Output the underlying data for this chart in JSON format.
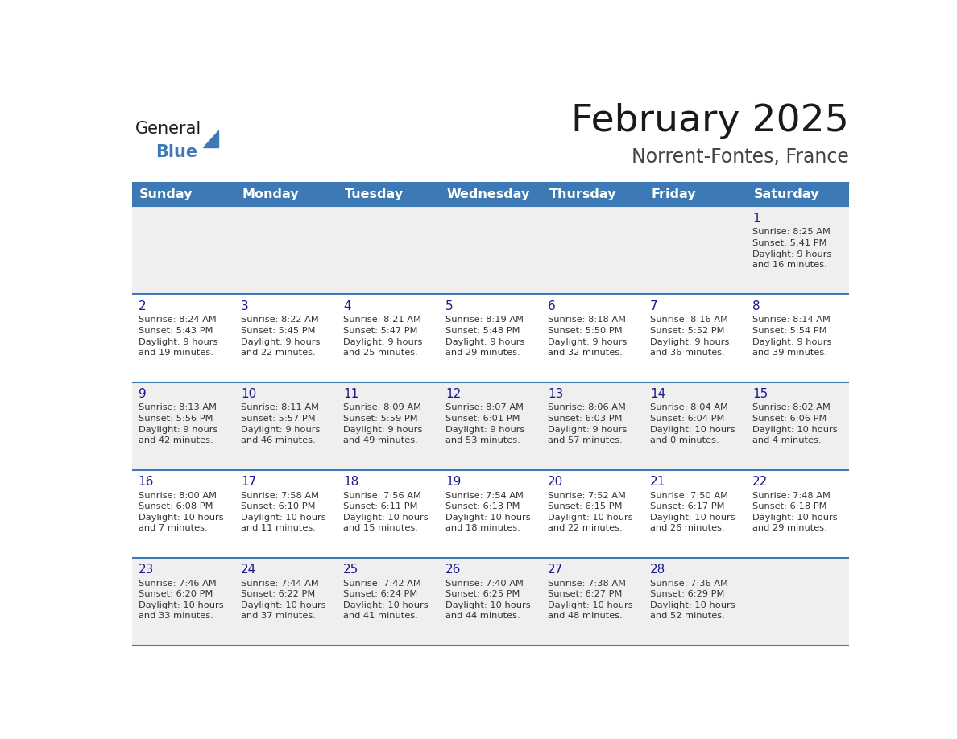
{
  "title": "February 2025",
  "subtitle": "Norrent-Fontes, France",
  "days_of_week": [
    "Sunday",
    "Monday",
    "Tuesday",
    "Wednesday",
    "Thursday",
    "Friday",
    "Saturday"
  ],
  "header_bg": "#3d7ab5",
  "header_text": "#ffffff",
  "cell_bg_odd": "#efefef",
  "cell_bg_even": "#ffffff",
  "day_number_color": "#1a1a8c",
  "info_text_color": "#333333",
  "line_color": "#3d7ab5",
  "title_color": "#1a1a1a",
  "subtitle_color": "#444444",
  "logo_general_color": "#1a1a1a",
  "logo_blue_color": "#3d7ab5",
  "weeks": [
    [
      {
        "day": null,
        "info": ""
      },
      {
        "day": null,
        "info": ""
      },
      {
        "day": null,
        "info": ""
      },
      {
        "day": null,
        "info": ""
      },
      {
        "day": null,
        "info": ""
      },
      {
        "day": null,
        "info": ""
      },
      {
        "day": 1,
        "info": "Sunrise: 8:25 AM\nSunset: 5:41 PM\nDaylight: 9 hours\nand 16 minutes."
      }
    ],
    [
      {
        "day": 2,
        "info": "Sunrise: 8:24 AM\nSunset: 5:43 PM\nDaylight: 9 hours\nand 19 minutes."
      },
      {
        "day": 3,
        "info": "Sunrise: 8:22 AM\nSunset: 5:45 PM\nDaylight: 9 hours\nand 22 minutes."
      },
      {
        "day": 4,
        "info": "Sunrise: 8:21 AM\nSunset: 5:47 PM\nDaylight: 9 hours\nand 25 minutes."
      },
      {
        "day": 5,
        "info": "Sunrise: 8:19 AM\nSunset: 5:48 PM\nDaylight: 9 hours\nand 29 minutes."
      },
      {
        "day": 6,
        "info": "Sunrise: 8:18 AM\nSunset: 5:50 PM\nDaylight: 9 hours\nand 32 minutes."
      },
      {
        "day": 7,
        "info": "Sunrise: 8:16 AM\nSunset: 5:52 PM\nDaylight: 9 hours\nand 36 minutes."
      },
      {
        "day": 8,
        "info": "Sunrise: 8:14 AM\nSunset: 5:54 PM\nDaylight: 9 hours\nand 39 minutes."
      }
    ],
    [
      {
        "day": 9,
        "info": "Sunrise: 8:13 AM\nSunset: 5:56 PM\nDaylight: 9 hours\nand 42 minutes."
      },
      {
        "day": 10,
        "info": "Sunrise: 8:11 AM\nSunset: 5:57 PM\nDaylight: 9 hours\nand 46 minutes."
      },
      {
        "day": 11,
        "info": "Sunrise: 8:09 AM\nSunset: 5:59 PM\nDaylight: 9 hours\nand 49 minutes."
      },
      {
        "day": 12,
        "info": "Sunrise: 8:07 AM\nSunset: 6:01 PM\nDaylight: 9 hours\nand 53 minutes."
      },
      {
        "day": 13,
        "info": "Sunrise: 8:06 AM\nSunset: 6:03 PM\nDaylight: 9 hours\nand 57 minutes."
      },
      {
        "day": 14,
        "info": "Sunrise: 8:04 AM\nSunset: 6:04 PM\nDaylight: 10 hours\nand 0 minutes."
      },
      {
        "day": 15,
        "info": "Sunrise: 8:02 AM\nSunset: 6:06 PM\nDaylight: 10 hours\nand 4 minutes."
      }
    ],
    [
      {
        "day": 16,
        "info": "Sunrise: 8:00 AM\nSunset: 6:08 PM\nDaylight: 10 hours\nand 7 minutes."
      },
      {
        "day": 17,
        "info": "Sunrise: 7:58 AM\nSunset: 6:10 PM\nDaylight: 10 hours\nand 11 minutes."
      },
      {
        "day": 18,
        "info": "Sunrise: 7:56 AM\nSunset: 6:11 PM\nDaylight: 10 hours\nand 15 minutes."
      },
      {
        "day": 19,
        "info": "Sunrise: 7:54 AM\nSunset: 6:13 PM\nDaylight: 10 hours\nand 18 minutes."
      },
      {
        "day": 20,
        "info": "Sunrise: 7:52 AM\nSunset: 6:15 PM\nDaylight: 10 hours\nand 22 minutes."
      },
      {
        "day": 21,
        "info": "Sunrise: 7:50 AM\nSunset: 6:17 PM\nDaylight: 10 hours\nand 26 minutes."
      },
      {
        "day": 22,
        "info": "Sunrise: 7:48 AM\nSunset: 6:18 PM\nDaylight: 10 hours\nand 29 minutes."
      }
    ],
    [
      {
        "day": 23,
        "info": "Sunrise: 7:46 AM\nSunset: 6:20 PM\nDaylight: 10 hours\nand 33 minutes."
      },
      {
        "day": 24,
        "info": "Sunrise: 7:44 AM\nSunset: 6:22 PM\nDaylight: 10 hours\nand 37 minutes."
      },
      {
        "day": 25,
        "info": "Sunrise: 7:42 AM\nSunset: 6:24 PM\nDaylight: 10 hours\nand 41 minutes."
      },
      {
        "day": 26,
        "info": "Sunrise: 7:40 AM\nSunset: 6:25 PM\nDaylight: 10 hours\nand 44 minutes."
      },
      {
        "day": 27,
        "info": "Sunrise: 7:38 AM\nSunset: 6:27 PM\nDaylight: 10 hours\nand 48 minutes."
      },
      {
        "day": 28,
        "info": "Sunrise: 7:36 AM\nSunset: 6:29 PM\nDaylight: 10 hours\nand 52 minutes."
      },
      {
        "day": null,
        "info": ""
      }
    ]
  ]
}
